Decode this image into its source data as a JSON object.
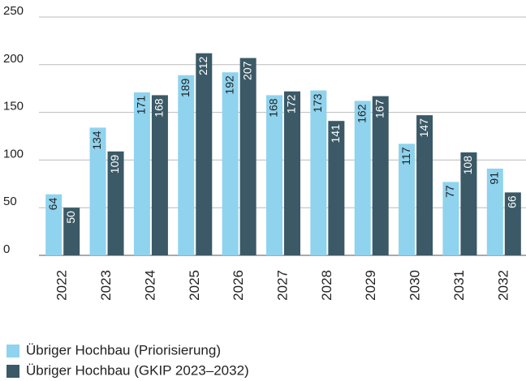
{
  "chart_data": {
    "type": "bar",
    "categories": [
      "2022",
      "2023",
      "2024",
      "2025",
      "2026",
      "2027",
      "2028",
      "2029",
      "2030",
      "2031",
      "2032"
    ],
    "series": [
      {
        "name": "Übriger Hochbau (Priorisierung)",
        "color": "#8fd3ee",
        "values": [
          64,
          134,
          171,
          189,
          192,
          168,
          173,
          162,
          117,
          77,
          91
        ]
      },
      {
        "name": "Übriger Hochbau (GKIP 2023–2032)",
        "color": "#3b5966",
        "values": [
          50,
          109,
          168,
          212,
          207,
          172,
          141,
          167,
          147,
          108,
          66
        ]
      }
    ],
    "ylim": [
      0,
      250
    ],
    "yticks": [
      0,
      50,
      100,
      150,
      200,
      250
    ],
    "grid": true,
    "legend": "bottom"
  }
}
